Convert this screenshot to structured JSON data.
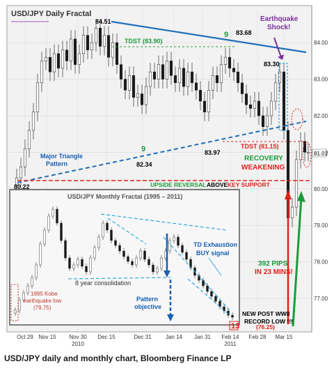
{
  "caption": "USD/JPY daily and monthly chart, Bloomberg Finance LP",
  "chart_data": [
    {
      "type": "line",
      "title": "USD/JPY Daily Fractal",
      "x_ticks": [
        "Oct 29",
        "Nov 15",
        "Nov 30\n2010",
        "Dec 15",
        "Dec 31",
        "Jan 14",
        "Jan 31",
        "Feb 14\n2011",
        "Feb 28",
        "Mar 15"
      ],
      "y_ticks": [
        77.0,
        78.0,
        79.0,
        80.0,
        81.0,
        82.0,
        83.0,
        84.0
      ],
      "ylim": [
        76.2,
        84.9
      ],
      "current_price": "81.01",
      "key_points": [
        {
          "label": "84.51",
          "value": 84.51
        },
        {
          "label": "83.68",
          "value": 83.68
        },
        {
          "label": "83.30",
          "value": 83.3
        },
        {
          "label": "82.34",
          "value": 82.34
        },
        {
          "label": "83.97",
          "value": 83.97
        },
        {
          "label": "80.22",
          "value": 80.22
        },
        {
          "label": "9",
          "value": 82.0
        },
        {
          "label": "9",
          "value": 83.9
        }
      ],
      "annotations": {
        "tdst_high": "TDST (83.90)",
        "tdst_low": "TDST (81.15)",
        "triangle": "Major Triangle\nPattern",
        "recovery": "RECOVERY",
        "weakening": "WEAKENING",
        "reversal_a": "UPSIDE REVERSAL",
        "reversal_b": "ABOVE",
        "reversal_c": "KEY SUPPORT",
        "quake": "Earthquake\nShock!",
        "pips": "392 PIPS\nIN 23 MINS!",
        "new_low": "NEW POST WWII\nRECORD LOW !!!",
        "new_low_value": "(76.25)",
        "count_13": "13"
      }
    },
    {
      "type": "line",
      "title": "USD/JPY Monthly Fractal  (1995 – 2011)",
      "annotations": {
        "consolidation": "8 year consolidation",
        "pattern": "Pattern\nobjective",
        "td": "TD Exhaustion\nBUY signal",
        "kobe": "1995 Kobe\nearthquake low\n(79.75)"
      }
    }
  ],
  "colors": {
    "red": "#e0201c",
    "green": "#1a9b3a",
    "blue": "#1a5fb0",
    "purple": "#7b2f9e"
  }
}
